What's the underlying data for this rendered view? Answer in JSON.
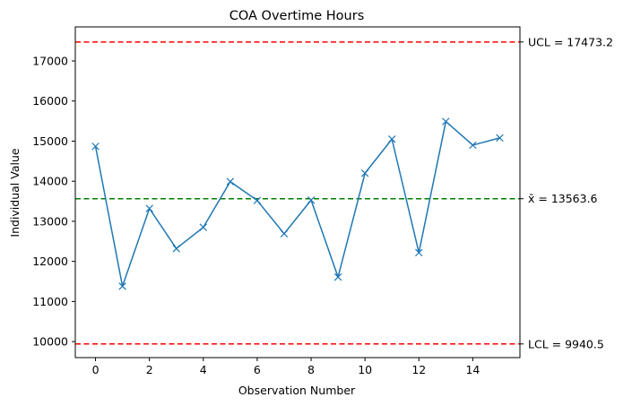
{
  "chart_data": {
    "type": "line",
    "title": "COA Overtime Hours",
    "xlabel": "Observation Number",
    "ylabel": "Individual Value",
    "xlim": [
      -0.75,
      15.75
    ],
    "ylim": [
      9600,
      17850
    ],
    "xticks": [
      0,
      2,
      4,
      6,
      8,
      10,
      12,
      14
    ],
    "yticks": [
      10000,
      11000,
      12000,
      13000,
      14000,
      15000,
      16000,
      17000
    ],
    "grid": false,
    "series": [
      {
        "x": [
          0,
          1,
          2,
          3,
          4,
          5,
          6,
          7,
          8,
          9,
          10,
          11,
          12,
          13,
          14,
          15
        ],
        "values": [
          14870,
          11380,
          13320,
          12320,
          12850,
          13990,
          13520,
          12690,
          13530,
          11610,
          14200,
          15050,
          12220,
          15490,
          14900,
          15080
        ],
        "color": "#1f77b4",
        "marker": "x"
      }
    ],
    "reference_lines": [
      {
        "name": "ucl",
        "value": 17473.2,
        "label": "UCL = 17473.2",
        "color": "#ff0000"
      },
      {
        "name": "center",
        "value": 13563.6,
        "label": "x̄ = 13563.6",
        "color": "#008000"
      },
      {
        "name": "lcl",
        "value": 9940.5,
        "label": "LCL = 9940.5",
        "color": "#ff0000"
      }
    ]
  }
}
